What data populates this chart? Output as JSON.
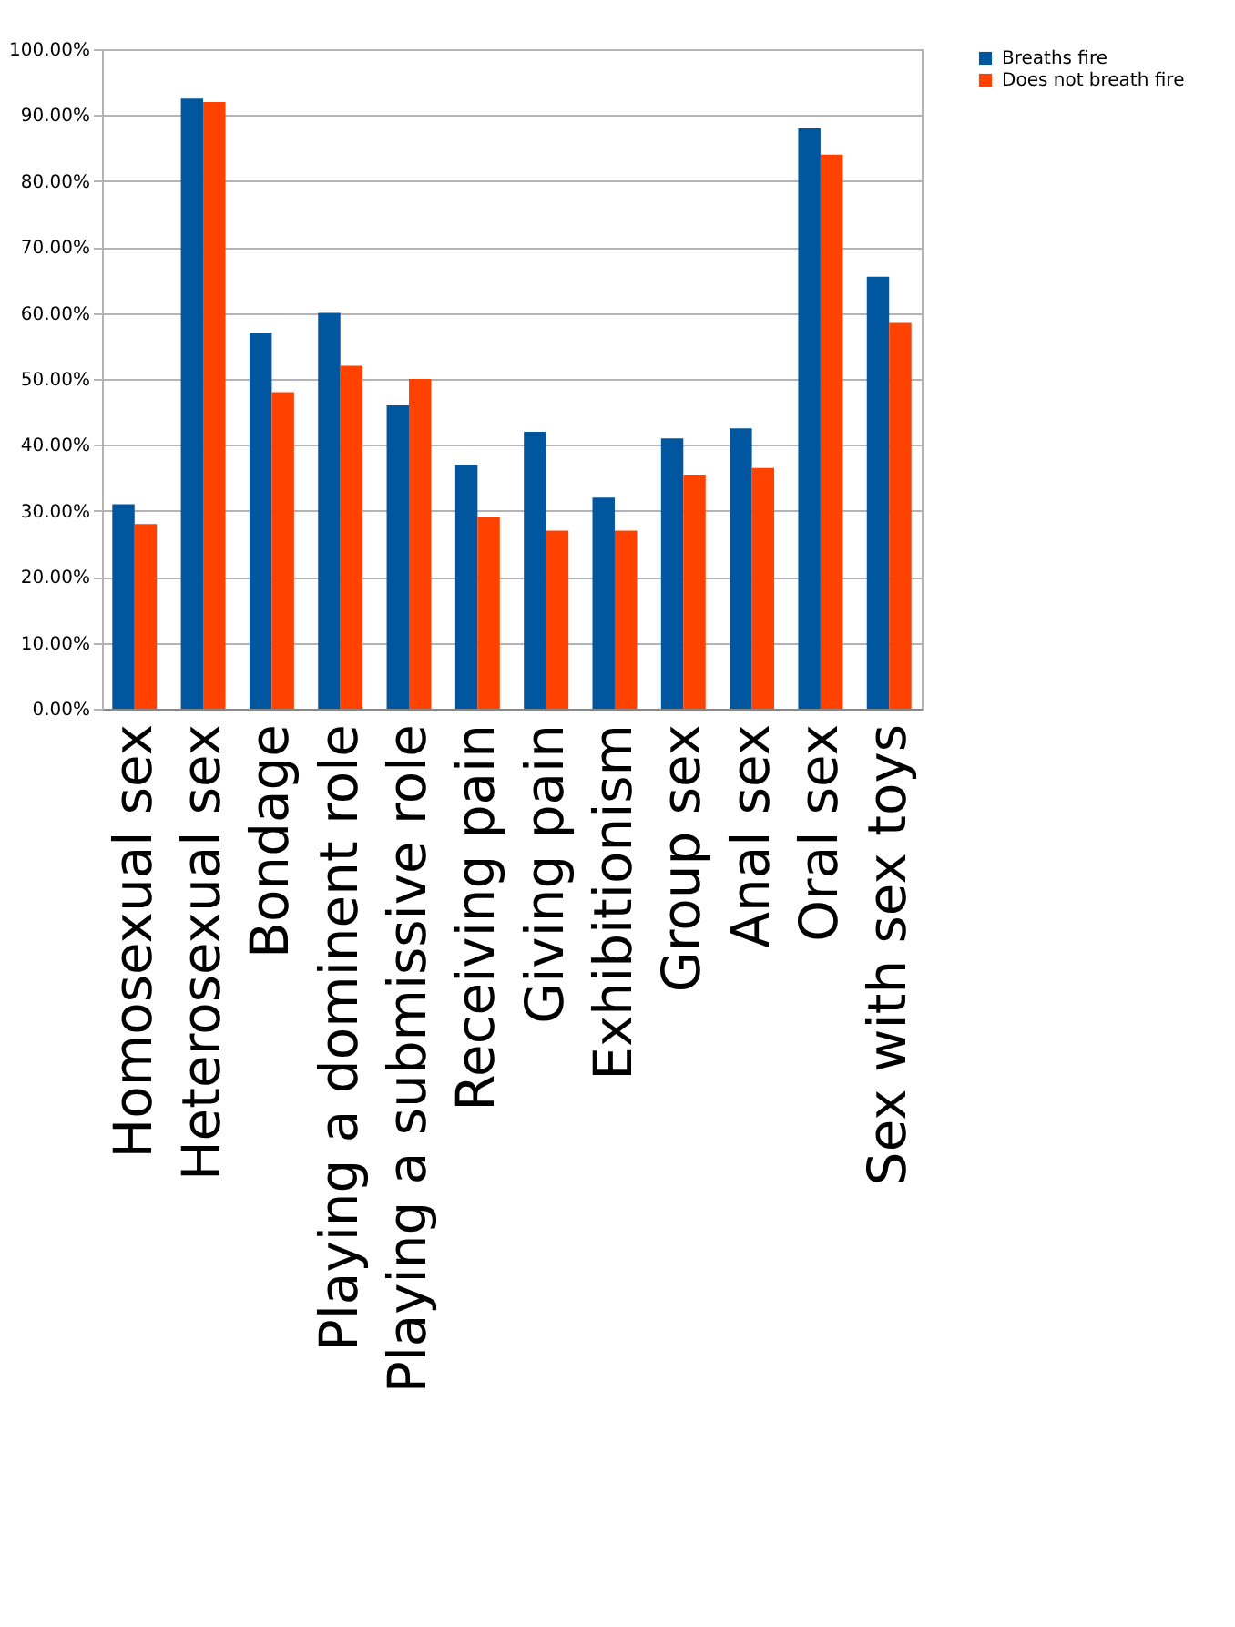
{
  "chart_data": {
    "type": "bar",
    "categories": [
      "Homosexual sex",
      "Heterosexual sex",
      "Bondage",
      "Playing a dominent role",
      "Playing a submissive role",
      "Receiving pain",
      "Giving pain",
      "Exhibitionism",
      "Group sex",
      "Anal sex",
      "Oral sex",
      "Sex with sex toys"
    ],
    "series": [
      {
        "name": "Breaths fire",
        "color": "#00579f",
        "values": [
          31,
          92.5,
          57,
          60,
          46,
          37,
          42,
          32,
          41,
          42.5,
          88,
          65.5
        ]
      },
      {
        "name": "Does not breath fire",
        "color": "#ff4200",
        "values": [
          28,
          92,
          48,
          52,
          50,
          29,
          27,
          27,
          35.5,
          36.5,
          84,
          58.5
        ]
      }
    ],
    "ylim": [
      0,
      100
    ],
    "yticks": [
      {
        "value": 0,
        "label": "0.00%"
      },
      {
        "value": 10,
        "label": "10.00%"
      },
      {
        "value": 20,
        "label": "20.00%"
      },
      {
        "value": 30,
        "label": "30.00%"
      },
      {
        "value": 40,
        "label": "40.00%"
      },
      {
        "value": 50,
        "label": "50.00%"
      },
      {
        "value": 60,
        "label": "60.00%"
      },
      {
        "value": 70,
        "label": "70.00%"
      },
      {
        "value": 80,
        "label": "80.00%"
      },
      {
        "value": 90,
        "label": "90.00%"
      },
      {
        "value": 100,
        "label": "100.00%"
      }
    ],
    "grid": "y",
    "legend": "right"
  }
}
